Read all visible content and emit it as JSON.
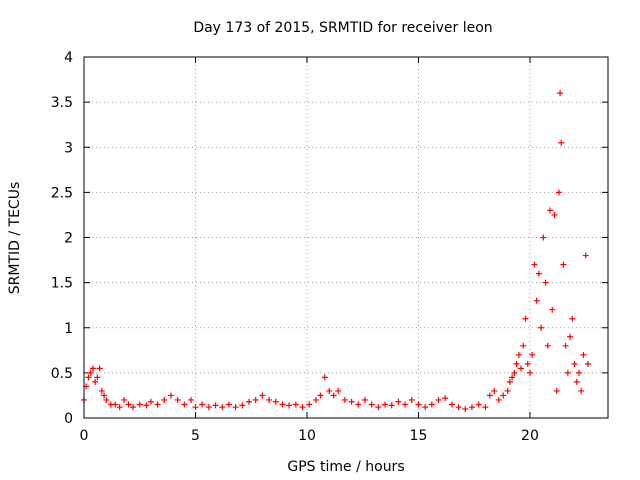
{
  "chart_data": {
    "type": "scatter",
    "title": "Day 173 of 2015, SRMTID for receiver leon",
    "xlabel": "GPS time / hours",
    "ylabel": "SRMTID / TECUs",
    "xlim": [
      0,
      23.5
    ],
    "ylim": [
      0,
      4
    ],
    "x_ticks": [
      0,
      5,
      10,
      15,
      20
    ],
    "x_tick_labels": [
      "0",
      "5",
      "10",
      "15",
      "20"
    ],
    "y_ticks": [
      0,
      0.5,
      1,
      1.5,
      2,
      2.5,
      3,
      3.5,
      4
    ],
    "y_tick_labels": [
      "0",
      "0.5",
      "1",
      "1.5",
      "2",
      "2.5",
      "3",
      "3.5",
      "4"
    ],
    "grid": true,
    "marker": "+",
    "color": "#ff0000",
    "series": [
      {
        "name": "SRMTID",
        "x": [
          0.0,
          0.1,
          0.2,
          0.3,
          0.4,
          0.5,
          0.6,
          0.7,
          0.8,
          0.9,
          1.0,
          1.2,
          1.4,
          1.6,
          1.8,
          2.0,
          2.2,
          2.5,
          2.8,
          3.0,
          3.3,
          3.6,
          3.9,
          4.2,
          4.5,
          4.8,
          5.0,
          5.3,
          5.6,
          5.9,
          6.2,
          6.5,
          6.8,
          7.1,
          7.4,
          7.7,
          8.0,
          8.3,
          8.6,
          8.9,
          9.2,
          9.5,
          9.8,
          10.1,
          10.4,
          10.6,
          10.8,
          11.0,
          11.2,
          11.4,
          11.7,
          12.0,
          12.3,
          12.6,
          12.9,
          13.2,
          13.5,
          13.8,
          14.1,
          14.4,
          14.7,
          15.0,
          15.3,
          15.6,
          15.9,
          16.2,
          16.5,
          16.8,
          17.1,
          17.4,
          17.7,
          18.0,
          18.2,
          18.4,
          18.6,
          18.8,
          19.0,
          19.1,
          19.2,
          19.3,
          19.4,
          19.5,
          19.6,
          19.7,
          19.8,
          19.9,
          20.0,
          20.1,
          20.2,
          20.3,
          20.4,
          20.5,
          20.6,
          20.7,
          20.8,
          20.9,
          21.0,
          21.1,
          21.2,
          21.3,
          21.35,
          21.4,
          21.5,
          21.6,
          21.7,
          21.8,
          21.9,
          22.0,
          22.1,
          22.2,
          22.3,
          22.4,
          22.5,
          22.6
        ],
        "y": [
          0.2,
          0.35,
          0.45,
          0.5,
          0.55,
          0.4,
          0.45,
          0.55,
          0.3,
          0.25,
          0.2,
          0.15,
          0.15,
          0.12,
          0.2,
          0.15,
          0.12,
          0.15,
          0.14,
          0.18,
          0.15,
          0.2,
          0.25,
          0.2,
          0.15,
          0.2,
          0.12,
          0.15,
          0.12,
          0.14,
          0.12,
          0.15,
          0.12,
          0.14,
          0.18,
          0.2,
          0.25,
          0.2,
          0.18,
          0.15,
          0.14,
          0.15,
          0.12,
          0.15,
          0.2,
          0.25,
          0.45,
          0.3,
          0.25,
          0.3,
          0.2,
          0.18,
          0.15,
          0.2,
          0.15,
          0.12,
          0.15,
          0.14,
          0.18,
          0.15,
          0.2,
          0.15,
          0.12,
          0.15,
          0.2,
          0.22,
          0.15,
          0.12,
          0.1,
          0.12,
          0.15,
          0.12,
          0.25,
          0.3,
          0.2,
          0.25,
          0.3,
          0.4,
          0.45,
          0.5,
          0.6,
          0.7,
          0.55,
          0.8,
          1.1,
          0.6,
          0.5,
          0.7,
          1.7,
          1.3,
          1.6,
          1.0,
          2.0,
          1.5,
          0.8,
          2.3,
          1.2,
          2.25,
          0.3,
          2.5,
          3.6,
          3.05,
          1.7,
          0.8,
          0.5,
          0.9,
          1.1,
          0.6,
          0.4,
          0.5,
          0.3,
          0.7,
          1.8,
          0.6
        ]
      }
    ]
  }
}
